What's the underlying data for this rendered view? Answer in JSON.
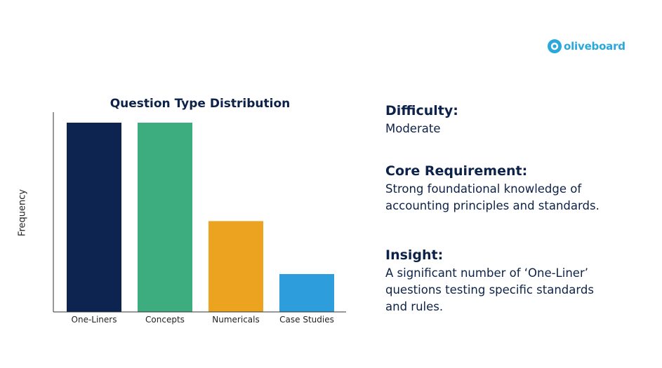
{
  "brand": {
    "name": "oliveboard",
    "color": "#2aa8dc"
  },
  "chart_data": {
    "type": "bar",
    "title": "Question Type Distribution",
    "xlabel": "",
    "ylabel": "Frequency",
    "categories": [
      "One-Liners",
      "Concepts",
      "Numericals",
      "Case Studies"
    ],
    "values": [
      100,
      100,
      48,
      20
    ],
    "colors": [
      "#0d2350",
      "#3dad80",
      "#eba320",
      "#2d9ddb"
    ],
    "ylim": [
      0,
      100
    ],
    "grid": false,
    "legend": "none"
  },
  "info": {
    "difficulty": {
      "heading": "Difficulty:",
      "body": "Moderate"
    },
    "core": {
      "heading": "Core Requirement:",
      "body": "Strong foundational knowledge of\naccounting principles and standards."
    },
    "insight": {
      "heading": "Insight:",
      "body": "A significant number of ‘One-Liner’\nquestions testing specific standards\nand rules."
    }
  }
}
